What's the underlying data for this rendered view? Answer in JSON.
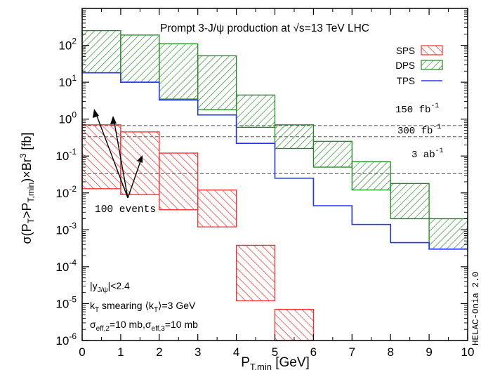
{
  "chart_data": {
    "type": "area",
    "title": "Prompt 3-J/ψ production at √s=13 TeV LHC",
    "xlabel": "P",
    "xlabel_sub": "T,min",
    "xlabel_unit": "[GeV]",
    "ylabel": "σ(P_T>P_T,min)×Br^3 [fb]",
    "xlim": [
      0,
      10
    ],
    "ylim": [
      1e-06,
      1000
    ],
    "y_scale": "log",
    "x_ticks": [
      "0",
      "1",
      "2",
      "3",
      "4",
      "5",
      "6",
      "7",
      "8",
      "9",
      "10"
    ],
    "y_ticks": [
      "10-6",
      "10-5",
      "10-4",
      "10-3",
      "10-2",
      "10-1",
      "100",
      "101",
      "102"
    ],
    "bin_edges": [
      0,
      1,
      2,
      3,
      4,
      5,
      6,
      7,
      8,
      9,
      10
    ],
    "series": [
      {
        "name": "SPS",
        "kind": "band",
        "color": "#ff2a2a",
        "lower": [
          0.013,
          0.009,
          0.0035,
          0.0012,
          1.2e-05,
          1e-06
        ],
        "upper": [
          0.7,
          0.45,
          0.12,
          0.012,
          0.00038,
          7e-06
        ]
      },
      {
        "name": "DPS",
        "kind": "band",
        "color": "#1f8a1f",
        "lower": [
          18,
          10,
          3.5,
          1.8,
          0.6,
          0.16,
          0.05,
          0.012,
          0.002,
          0.0003
        ],
        "upper": [
          250,
          190,
          110,
          52,
          4.5,
          0.7,
          0.25,
          0.07,
          0.018,
          0.002
        ]
      },
      {
        "name": "TPS",
        "kind": "line",
        "color": "#2233ff",
        "values": [
          18,
          10,
          3.3,
          1.3,
          0.22,
          0.025,
          0.0045,
          0.0014,
          0.00045,
          0.0003
        ]
      }
    ],
    "reference_lines": [
      {
        "value": 0.667,
        "label": "150 fb",
        "label_sup": "-1"
      },
      {
        "value": 0.333,
        "label": "300 fb",
        "label_sup": "-1"
      },
      {
        "value": 0.0333,
        "label": "3 ab",
        "label_sup": "-1"
      }
    ],
    "legend": [
      "SPS",
      "DPS",
      "TPS"
    ],
    "legend_position": "top-right",
    "annotations": {
      "events": "100 events",
      "rapidity": "|y_J/ψ|<2.4",
      "kt": "k_T smearing ⟨k_T⟩=3 GeV",
      "sigma_eff": "σ_eff,2=10 mb,σ_eff,3=10 mb",
      "watermark": "HELAC-Onia 2.0"
    }
  }
}
